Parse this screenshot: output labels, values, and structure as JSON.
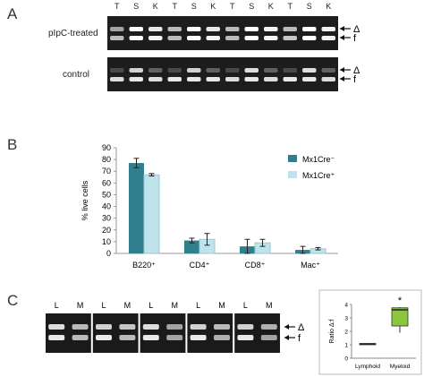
{
  "panelA": {
    "letter": "A",
    "lanes": [
      "T",
      "S",
      "K",
      "T",
      "S",
      "K",
      "T",
      "S",
      "K",
      "T",
      "S",
      "K"
    ],
    "gels": [
      {
        "label": "pIpC-treated"
      },
      {
        "label": "control"
      }
    ],
    "band_labels": {
      "upper": "Δ",
      "lower": "f"
    }
  },
  "panelB": {
    "letter": "B",
    "chart_data": {
      "type": "bar",
      "categories": [
        "B220⁺",
        "CD4⁺",
        "CD8⁺",
        "Mac⁺"
      ],
      "series": [
        {
          "name": "Mx1Cre⁻",
          "color": "#2f7f8e",
          "values": [
            77,
            11,
            6,
            3
          ],
          "errors": [
            4,
            2,
            6,
            3
          ]
        },
        {
          "name": "Mx1Cre⁺",
          "color": "#bfe3ea",
          "values": [
            67,
            12,
            9,
            4
          ],
          "errors": [
            1,
            5,
            3,
            1
          ]
        }
      ],
      "ylabel": "% live cells",
      "ylim": [
        0,
        90
      ],
      "yticks": [
        0,
        10,
        20,
        30,
        40,
        50,
        60,
        70,
        80,
        90
      ],
      "legend": "right"
    }
  },
  "panelC": {
    "letter": "C",
    "lanes": [
      "L",
      "M",
      "L",
      "M",
      "L",
      "M",
      "L",
      "M",
      "L",
      "M"
    ],
    "band_labels": {
      "upper": "Δ",
      "lower": "f"
    },
    "chart_data": {
      "type": "box",
      "categories": [
        "Lymphoid",
        "Myeloid"
      ],
      "ylabel": "Ratio Δ:f",
      "ylim": [
        0,
        4
      ],
      "yticks": [
        0,
        1,
        2,
        3,
        4
      ],
      "boxes": [
        {
          "min": 1.0,
          "q1": 1.0,
          "median": 1.05,
          "q3": 1.1,
          "max": 1.1,
          "color": "#f2e8b0"
        },
        {
          "min": 1.9,
          "q1": 2.4,
          "median": 3.6,
          "q3": 3.75,
          "max": 3.8,
          "color": "#8cc63f"
        }
      ],
      "annotation": "*"
    }
  }
}
